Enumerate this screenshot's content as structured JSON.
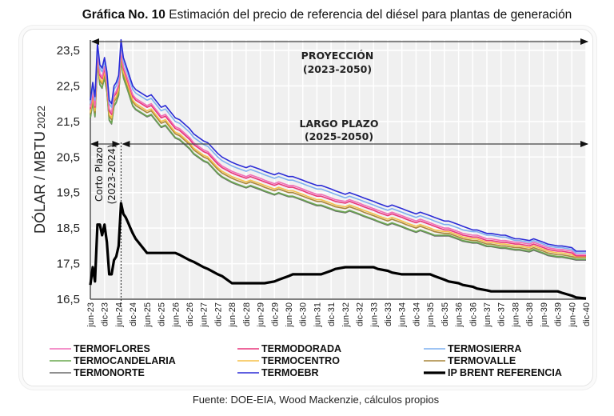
{
  "title": {
    "bold": "Gráfica No. 10",
    "rest": " Estimación del precio de referencia del diésel para plantas de generación"
  },
  "source": "Fuente: DOE-EIA, Wood Mackenzie, cálculos propios",
  "chart_data": {
    "type": "line",
    "title": "Gráfica No. 10 Estimación del precio de referencia del diésel para plantas de generación",
    "xlabel": "",
    "ylabel": "DÓLAR / MBTU",
    "ylabel_sub": "2022",
    "ylim": [
      16.5,
      23.5
    ],
    "yticks": [
      "23,5",
      "22,5",
      "21,5",
      "20,5",
      "19,5",
      "18,5",
      "17,5",
      "16,5"
    ],
    "ytick_values": [
      23.5,
      22.5,
      21.5,
      20.5,
      19.5,
      18.5,
      17.5,
      16.5
    ],
    "grid": true,
    "legend_position": "bottom",
    "x_index_range": [
      0,
      35
    ],
    "categories": [
      "jun-23",
      "dic-23",
      "jun-24",
      "dic-24",
      "jun-25",
      "dic-25",
      "jun-26",
      "dic-26",
      "jun-27",
      "dic-27",
      "jun-28",
      "dic-28",
      "jun-29",
      "dic-29",
      "jun-30",
      "dic-30",
      "jun-31",
      "dic-31",
      "jun-32",
      "dic-32",
      "jun-33",
      "dic-33",
      "jun-34",
      "dic-34",
      "jun-35",
      "dic-35",
      "jun-36",
      "dic-36",
      "jun-37",
      "dic-37",
      "jun-38",
      "dic-38",
      "jun-39",
      "dic-39",
      "jun-40",
      "dic-40"
    ],
    "x": [
      0,
      0.17,
      0.33,
      0.5,
      0.67,
      0.83,
      1.0,
      1.17,
      1.33,
      1.5,
      1.67,
      1.83,
      2.0,
      2.17,
      2.33,
      2.5,
      2.67,
      2.83,
      3.0,
      3.2,
      4,
      4.3,
      5,
      5.3,
      6,
      6.3,
      7,
      7.3,
      8,
      8.3,
      9,
      9.3,
      10,
      10.3,
      11,
      11.3,
      12,
      12.3,
      13,
      13.3,
      14,
      14.3,
      15,
      15.3,
      16,
      16.3,
      17,
      17.3,
      18,
      18.3,
      19,
      19.3,
      20,
      20.3,
      21,
      21.3,
      22,
      22.3,
      23,
      23.3,
      24,
      24.3,
      25,
      25.3,
      26,
      26.3,
      27,
      27.3,
      28,
      28.3,
      29,
      29.3,
      30,
      30.3,
      31,
      31.3,
      32,
      32.3,
      33,
      33.3,
      34,
      34.3,
      35
    ],
    "series": [
      {
        "name": "TERMOEBR",
        "color": "#2b2bd6",
        "values": [
          22.1,
          22.6,
          22.2,
          23.7,
          23.1,
          23.0,
          23.3,
          22.9,
          22.1,
          22.0,
          22.5,
          22.6,
          22.8,
          23.8,
          23.3,
          23.1,
          22.9,
          22.7,
          22.5,
          22.4,
          22.2,
          22.25,
          21.9,
          21.95,
          21.6,
          21.55,
          21.3,
          21.15,
          20.95,
          20.9,
          20.6,
          20.5,
          20.35,
          20.3,
          20.2,
          20.25,
          20.15,
          20.1,
          20.0,
          20.05,
          19.95,
          19.95,
          19.85,
          19.8,
          19.7,
          19.7,
          19.6,
          19.55,
          19.45,
          19.5,
          19.4,
          19.35,
          19.25,
          19.2,
          19.1,
          19.15,
          19.05,
          19.0,
          18.9,
          18.95,
          18.85,
          18.8,
          18.7,
          18.7,
          18.6,
          18.55,
          18.45,
          18.45,
          18.35,
          18.35,
          18.3,
          18.3,
          18.2,
          18.2,
          18.15,
          18.2,
          18.1,
          18.05,
          18.0,
          18.0,
          17.95,
          17.85,
          17.85
        ]
      },
      {
        "name": "TERMOSIERRA",
        "color": "#7fb0f0",
        "values": [
          22.0,
          22.5,
          22.1,
          23.6,
          23.0,
          22.9,
          23.2,
          22.8,
          22.0,
          21.9,
          22.4,
          22.5,
          22.7,
          23.7,
          23.2,
          23.0,
          22.8,
          22.6,
          22.4,
          22.3,
          22.1,
          22.15,
          21.8,
          21.85,
          21.5,
          21.45,
          21.2,
          21.05,
          20.85,
          20.8,
          20.5,
          20.4,
          20.25,
          20.2,
          20.1,
          20.15,
          20.05,
          20.0,
          19.9,
          19.95,
          19.85,
          19.85,
          19.75,
          19.7,
          19.6,
          19.6,
          19.5,
          19.45,
          19.35,
          19.4,
          19.3,
          19.25,
          19.15,
          19.1,
          19.0,
          19.05,
          18.95,
          18.9,
          18.8,
          18.85,
          18.75,
          18.7,
          18.6,
          18.6,
          18.5,
          18.45,
          18.4,
          18.4,
          18.3,
          18.3,
          18.25,
          18.25,
          18.15,
          18.15,
          18.1,
          18.15,
          18.05,
          18.0,
          17.95,
          17.95,
          17.9,
          17.8,
          17.8
        ]
      },
      {
        "name": "TERMOFLORES",
        "color": "#f06eb8",
        "values": [
          21.9,
          22.35,
          21.95,
          23.45,
          22.85,
          22.75,
          23.05,
          22.65,
          21.85,
          21.75,
          22.25,
          22.35,
          22.55,
          23.55,
          23.05,
          22.85,
          22.65,
          22.45,
          22.25,
          22.15,
          21.95,
          22.0,
          21.65,
          21.7,
          21.35,
          21.3,
          21.05,
          20.9,
          20.7,
          20.65,
          20.35,
          20.25,
          20.1,
          20.05,
          19.95,
          20.0,
          19.9,
          19.85,
          19.75,
          19.8,
          19.7,
          19.7,
          19.6,
          19.55,
          19.45,
          19.45,
          19.35,
          19.3,
          19.25,
          19.3,
          19.2,
          19.15,
          19.05,
          19.0,
          18.9,
          18.95,
          18.85,
          18.8,
          18.7,
          18.75,
          18.65,
          18.6,
          18.5,
          18.5,
          18.4,
          18.35,
          18.3,
          18.3,
          18.2,
          18.2,
          18.15,
          18.15,
          18.1,
          18.1,
          18.05,
          18.1,
          18.0,
          17.95,
          17.9,
          17.9,
          17.85,
          17.75,
          17.75
        ]
      },
      {
        "name": "TERMODORADA",
        "color": "#e8357a",
        "values": [
          21.85,
          22.3,
          21.9,
          23.4,
          22.8,
          22.7,
          23.0,
          22.6,
          21.8,
          21.7,
          22.2,
          22.3,
          22.5,
          23.5,
          23.0,
          22.8,
          22.6,
          22.4,
          22.2,
          22.1,
          21.9,
          21.95,
          21.6,
          21.65,
          21.3,
          21.25,
          21.0,
          20.85,
          20.65,
          20.6,
          20.3,
          20.2,
          20.05,
          20.0,
          19.9,
          19.95,
          19.85,
          19.8,
          19.7,
          19.75,
          19.65,
          19.65,
          19.55,
          19.5,
          19.4,
          19.4,
          19.3,
          19.25,
          19.2,
          19.25,
          19.15,
          19.1,
          19.0,
          18.95,
          18.85,
          18.9,
          18.8,
          18.75,
          18.65,
          18.7,
          18.6,
          18.55,
          18.45,
          18.45,
          18.35,
          18.3,
          18.25,
          18.25,
          18.15,
          18.15,
          18.1,
          18.1,
          18.05,
          18.05,
          18.0,
          18.05,
          17.95,
          17.9,
          17.85,
          17.85,
          17.8,
          17.72,
          17.72
        ]
      },
      {
        "name": "TERMOCENTRO",
        "color": "#f5c04a",
        "values": [
          21.75,
          22.2,
          21.8,
          23.3,
          22.7,
          22.6,
          22.9,
          22.5,
          21.7,
          21.6,
          22.1,
          22.2,
          22.4,
          23.4,
          22.9,
          22.7,
          22.5,
          22.3,
          22.1,
          22.0,
          21.8,
          21.85,
          21.5,
          21.55,
          21.2,
          21.15,
          20.9,
          20.75,
          20.55,
          20.5,
          20.2,
          20.1,
          19.95,
          19.9,
          19.8,
          19.85,
          19.75,
          19.7,
          19.6,
          19.65,
          19.55,
          19.55,
          19.45,
          19.4,
          19.3,
          19.3,
          19.2,
          19.15,
          19.1,
          19.15,
          19.05,
          19.0,
          18.9,
          18.85,
          18.75,
          18.8,
          18.7,
          18.65,
          18.55,
          18.6,
          18.5,
          18.45,
          18.4,
          18.4,
          18.3,
          18.25,
          18.2,
          18.2,
          18.1,
          18.1,
          18.05,
          18.05,
          18.0,
          18.0,
          17.95,
          18.0,
          17.9,
          17.85,
          17.8,
          17.8,
          17.75,
          17.7,
          17.7
        ]
      },
      {
        "name": "TERMOVALLE",
        "color": "#a8863a",
        "values": [
          21.7,
          22.15,
          21.75,
          23.25,
          22.65,
          22.55,
          22.85,
          22.45,
          21.65,
          21.55,
          22.05,
          22.15,
          22.35,
          23.35,
          22.85,
          22.65,
          22.45,
          22.25,
          22.05,
          21.95,
          21.75,
          21.8,
          21.45,
          21.5,
          21.15,
          21.1,
          20.85,
          20.7,
          20.5,
          20.45,
          20.15,
          20.05,
          19.9,
          19.85,
          19.75,
          19.8,
          19.7,
          19.65,
          19.55,
          19.6,
          19.5,
          19.5,
          19.4,
          19.35,
          19.25,
          19.25,
          19.15,
          19.1,
          19.05,
          19.1,
          19.0,
          18.95,
          18.85,
          18.8,
          18.7,
          18.75,
          18.65,
          18.6,
          18.5,
          18.55,
          18.45,
          18.4,
          18.35,
          18.35,
          18.25,
          18.2,
          18.15,
          18.15,
          18.05,
          18.05,
          18.0,
          18.0,
          17.95,
          17.95,
          17.9,
          17.95,
          17.85,
          17.8,
          17.75,
          17.75,
          17.7,
          17.67,
          17.67
        ]
      },
      {
        "name": "TERMOCANDELARIA",
        "color": "#6aa84f",
        "values": [
          21.6,
          22.05,
          21.65,
          23.15,
          22.55,
          22.45,
          22.75,
          22.35,
          21.55,
          21.45,
          21.95,
          22.05,
          22.25,
          23.25,
          22.75,
          22.55,
          22.35,
          22.15,
          21.95,
          21.85,
          21.65,
          21.7,
          21.35,
          21.4,
          21.05,
          21.0,
          20.75,
          20.6,
          20.4,
          20.35,
          20.05,
          19.95,
          19.8,
          19.75,
          19.65,
          19.7,
          19.6,
          19.55,
          19.45,
          19.5,
          19.4,
          19.4,
          19.3,
          19.25,
          19.15,
          19.15,
          19.05,
          19.0,
          18.95,
          19.0,
          18.9,
          18.85,
          18.75,
          18.7,
          18.6,
          18.65,
          18.55,
          18.5,
          18.4,
          18.45,
          18.35,
          18.3,
          18.3,
          18.3,
          18.2,
          18.15,
          18.1,
          18.1,
          18.0,
          18.0,
          17.95,
          17.95,
          17.9,
          17.9,
          17.85,
          17.9,
          17.8,
          17.75,
          17.7,
          17.7,
          17.65,
          17.62,
          17.62
        ]
      },
      {
        "name": "TERMONORTE",
        "color": "#6b6b6b",
        "values": [
          21.58,
          22.03,
          21.63,
          23.13,
          22.53,
          22.43,
          22.73,
          22.33,
          21.53,
          21.43,
          21.93,
          22.03,
          22.23,
          23.23,
          22.73,
          22.53,
          22.33,
          22.13,
          21.93,
          21.83,
          21.63,
          21.68,
          21.33,
          21.38,
          21.03,
          20.98,
          20.73,
          20.58,
          20.38,
          20.33,
          20.03,
          19.93,
          19.78,
          19.73,
          19.63,
          19.68,
          19.58,
          19.53,
          19.43,
          19.48,
          19.38,
          19.38,
          19.28,
          19.23,
          19.13,
          19.13,
          19.03,
          18.98,
          18.93,
          18.98,
          18.88,
          18.83,
          18.73,
          18.68,
          18.58,
          18.63,
          18.53,
          18.48,
          18.38,
          18.43,
          18.33,
          18.28,
          18.28,
          18.28,
          18.18,
          18.13,
          18.08,
          18.08,
          17.98,
          17.98,
          17.93,
          17.93,
          17.88,
          17.88,
          17.83,
          17.88,
          17.78,
          17.73,
          17.68,
          17.68,
          17.63,
          17.6,
          17.6
        ]
      },
      {
        "name": "IP BRENT REFERENCIA",
        "color": "#000000",
        "values": [
          16.9,
          17.4,
          17.0,
          18.6,
          18.6,
          18.3,
          18.6,
          18.1,
          17.2,
          17.2,
          17.6,
          17.7,
          18.0,
          19.2,
          18.9,
          18.8,
          18.65,
          18.5,
          18.35,
          18.2,
          17.8,
          17.8,
          17.8,
          17.8,
          17.8,
          17.75,
          17.6,
          17.55,
          17.4,
          17.35,
          17.2,
          17.15,
          16.95,
          16.95,
          16.95,
          16.95,
          16.95,
          16.95,
          17.0,
          17.05,
          17.15,
          17.2,
          17.2,
          17.2,
          17.2,
          17.2,
          17.3,
          17.35,
          17.4,
          17.4,
          17.4,
          17.4,
          17.4,
          17.35,
          17.3,
          17.25,
          17.2,
          17.2,
          17.2,
          17.2,
          17.2,
          17.15,
          17.05,
          17.0,
          16.95,
          16.9,
          16.85,
          16.8,
          16.75,
          16.72,
          16.72,
          16.72,
          16.72,
          16.72,
          16.72,
          16.72,
          16.72,
          16.72,
          16.72,
          16.68,
          16.6,
          16.55,
          16.52
        ]
      }
    ],
    "annotations": [
      {
        "id": "proyeccion",
        "line1": "PROYECCIÓN",
        "line2": "(2023-2050)",
        "from": "jun-23",
        "to": "dic-40",
        "arrow": "both"
      },
      {
        "id": "largo-plazo",
        "line1": "LARGO PLAZO",
        "line2": "(2025-2050)",
        "from": "dic-24",
        "to": "dic-40",
        "arrow": "both"
      },
      {
        "id": "corto-plazo",
        "line1": "Corto Plazo",
        "line2": "(2023-2024)",
        "from": "jun-23",
        "to": "jun-24",
        "arrow": "both",
        "orientation": "vertical"
      }
    ],
    "divider_at": "jun-24",
    "legend": [
      {
        "label": "TERMOFLORES",
        "color": "#f06eb8",
        "width": "thin"
      },
      {
        "label": "TERMODORADA",
        "color": "#e8357a",
        "width": "thin"
      },
      {
        "label": "TERMOSIERRA",
        "color": "#7fb0f0",
        "width": "thin"
      },
      {
        "label": "TERMOCANDELARIA",
        "color": "#6aa84f",
        "width": "thin"
      },
      {
        "label": "TERMOCENTRO",
        "color": "#f5c04a",
        "width": "thin"
      },
      {
        "label": "TERMOVALLE",
        "color": "#a8863a",
        "width": "thin"
      },
      {
        "label": "TERMONORTE",
        "color": "#6b6b6b",
        "width": "thin"
      },
      {
        "label": "TERMOEBR",
        "color": "#2b2bd6",
        "width": "thin"
      },
      {
        "label": "IP BRENT REFERENCIA",
        "color": "#000000",
        "width": "thick"
      }
    ]
  }
}
